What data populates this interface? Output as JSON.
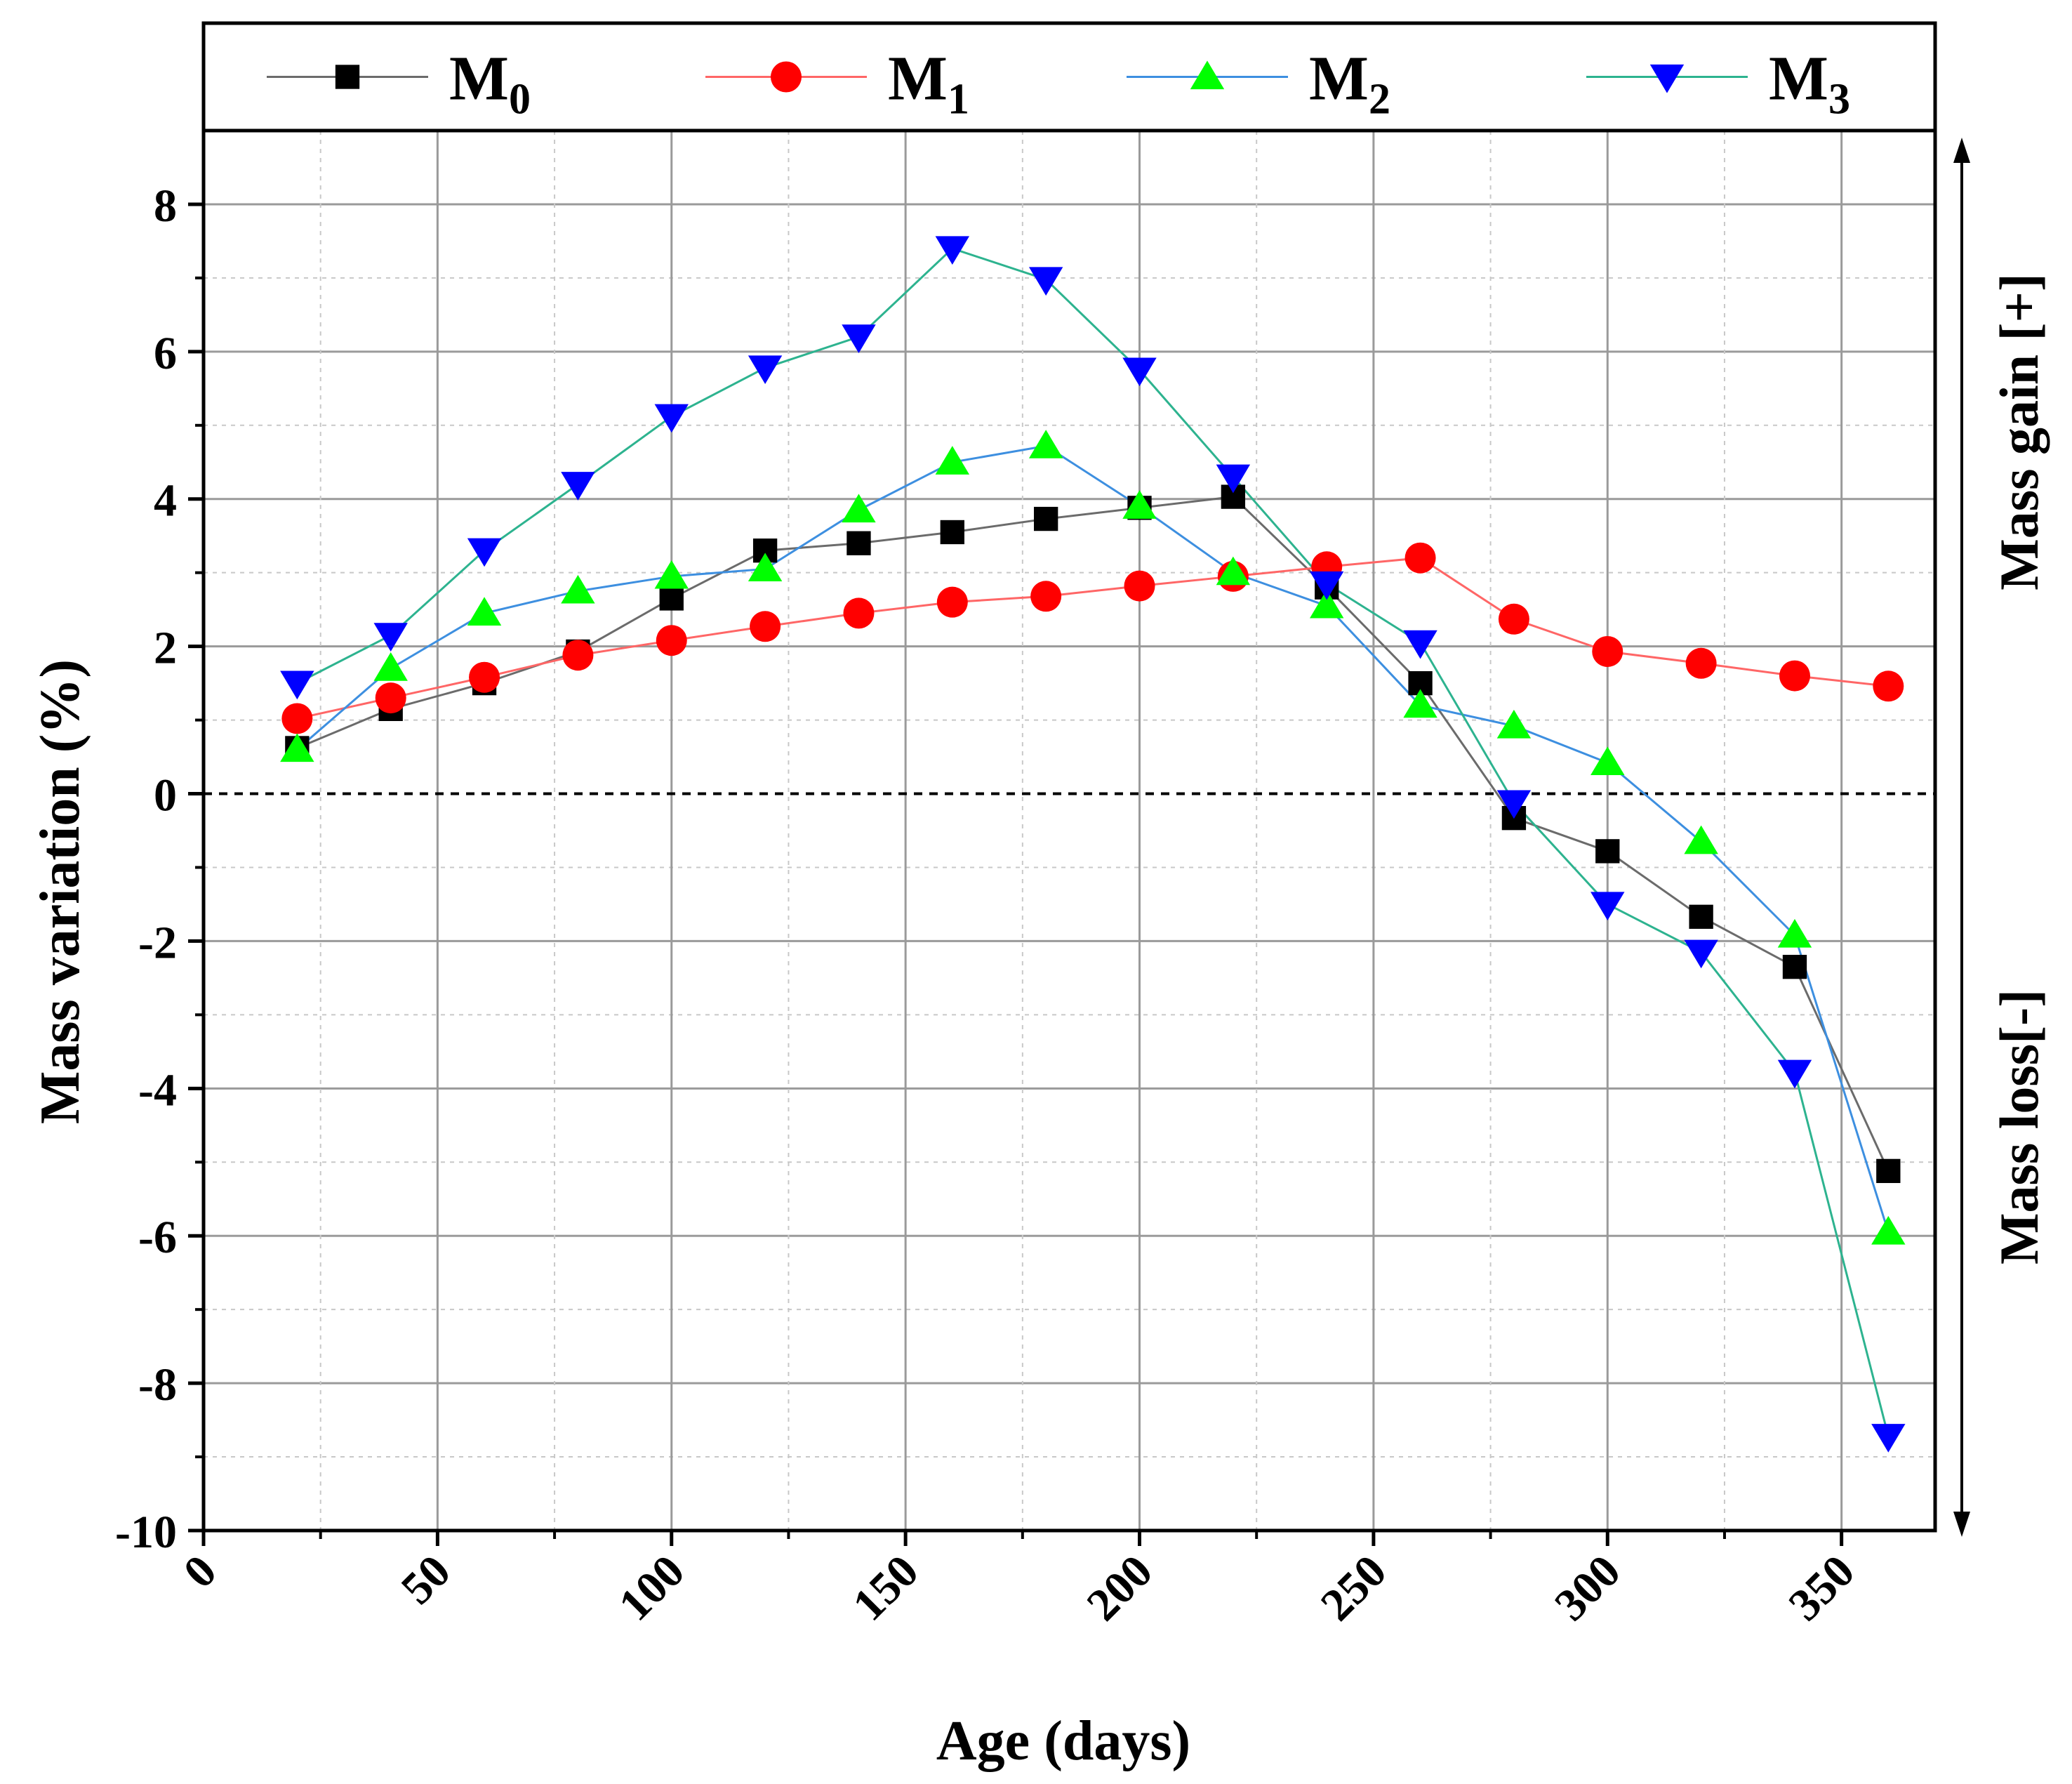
{
  "chart_data": {
    "type": "line",
    "title": "",
    "xlabel": "Age (days)",
    "ylabel": "Mass variation (%)",
    "xlim": [
      0,
      370
    ],
    "ylim": [
      -10,
      9
    ],
    "x_ticks": [
      "0",
      "50",
      "100",
      "150",
      "200",
      "250",
      "300",
      "350"
    ],
    "y_ticks": [
      "8",
      "6",
      "4",
      "2",
      "0",
      "-2",
      "-4",
      "-6",
      "-8",
      "-10"
    ],
    "grid": true,
    "legend_position": "top",
    "reference_line_y": 0,
    "right_annotations": {
      "gain": "Mass gain [+]",
      "loss": "Mass loss[-]"
    },
    "x": [
      20,
      40,
      60,
      80,
      100,
      120,
      140,
      160,
      180,
      200,
      220,
      240,
      260,
      280,
      300,
      320,
      340,
      360
    ],
    "series": [
      {
        "name": "M0",
        "base": "M",
        "sub": "0",
        "marker": "square",
        "marker_color": "#000000",
        "line_color": "#6b6b6b",
        "values": [
          0.62,
          1.15,
          1.5,
          1.93,
          2.65,
          3.3,
          3.4,
          3.55,
          3.73,
          3.88,
          4.03,
          2.8,
          1.5,
          -0.33,
          -0.78,
          -1.67,
          -2.35,
          -5.12
        ]
      },
      {
        "name": "M1",
        "base": "M",
        "sub": "1",
        "marker": "circle",
        "marker_color": "#ff0000",
        "line_color": "#ff6666",
        "values": [
          1.02,
          1.3,
          1.58,
          1.88,
          2.08,
          2.27,
          2.45,
          2.6,
          2.68,
          2.82,
          2.95,
          3.08,
          3.2,
          2.37,
          1.93,
          1.77,
          1.6,
          1.46
        ]
      },
      {
        "name": "M2",
        "base": "M",
        "sub": "2",
        "marker": "triangle-up",
        "marker_color": "#00ff00",
        "line_color": "#3d8fe0",
        "values": [
          0.6,
          1.7,
          2.45,
          2.75,
          2.95,
          3.05,
          3.85,
          4.5,
          4.72,
          3.9,
          3.0,
          2.55,
          1.2,
          0.92,
          0.42,
          -0.65,
          -1.92,
          -5.95
        ]
      },
      {
        "name": "M3",
        "base": "M",
        "sub": "3",
        "marker": "triangle-down",
        "marker_color": "#0000ff",
        "line_color": "#2db38f",
        "values": [
          1.5,
          2.15,
          3.3,
          4.2,
          5.12,
          5.78,
          6.2,
          7.4,
          6.98,
          5.75,
          4.3,
          2.85,
          2.05,
          -0.12,
          -1.5,
          -2.15,
          -3.78,
          -8.72
        ]
      }
    ]
  }
}
